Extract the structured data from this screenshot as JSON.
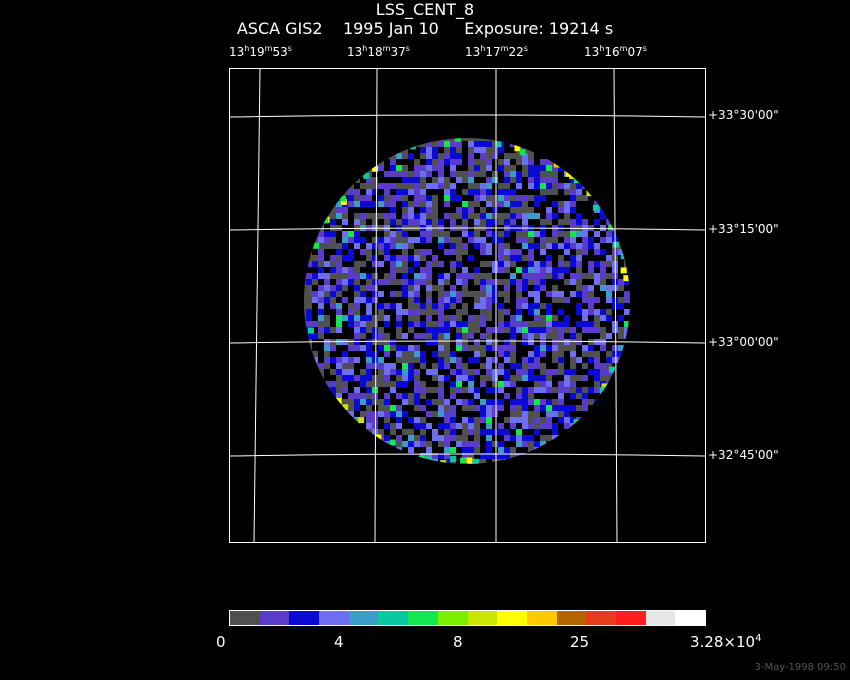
{
  "header": {
    "title": "LSS_CENT_8",
    "subtitle": "ASCA GIS2    1995 Jan 10     Exposure: 19214 s"
  },
  "ra_labels": [
    {
      "h": "13",
      "m": "19",
      "s": "53"
    },
    {
      "h": "13",
      "m": "18",
      "s": "37"
    },
    {
      "h": "13",
      "m": "17",
      "s": "22"
    },
    {
      "h": "13",
      "m": "16",
      "s": "07"
    }
  ],
  "dec_labels": [
    "+33°30'00\"",
    "+33°15'00\"",
    "+33°00'00\"",
    "+32°45'00\""
  ],
  "colorbar": {
    "colors": [
      "#505050",
      "#5a3cc8",
      "#0a0ad2",
      "#6e6ef0",
      "#3c9cc8",
      "#0ac8a0",
      "#14e650",
      "#78f000",
      "#c8e600",
      "#ffff00",
      "#ffc800",
      "#b46400",
      "#e63c1e",
      "#ff1e1e",
      "#e6e6e6",
      "#ffffff"
    ],
    "labels": {
      "l0": "0",
      "l1": "4",
      "l2": "8",
      "l3": "25",
      "l4_base": "3.28×10",
      "l4_exp": "4"
    }
  },
  "timestamp": "3-May-1998 09:50"
}
